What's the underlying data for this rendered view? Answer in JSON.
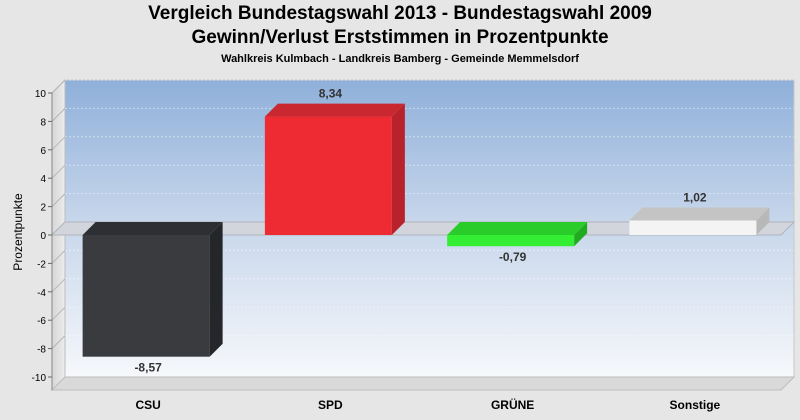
{
  "chart_data": {
    "type": "bar",
    "title": "Vergleich Bundestagswahl 2013 - Bundestagswahl 2009",
    "subtitle": "Gewinn/Verlust Erststimmen in Prozentpunkte",
    "subtitle2": "Wahlkreis Kulmbach - Landkreis Bamberg - Gemeinde Memmelsdorf",
    "ylabel": "Prozentpunkte",
    "xlabel": "",
    "ylim": [
      -10,
      10
    ],
    "yticks": [
      10,
      8,
      6,
      4,
      2,
      0,
      -2,
      -4,
      -6,
      -8,
      -10
    ],
    "categories": [
      "CSU",
      "SPD",
      "GRÜNE",
      "Sonstige"
    ],
    "values": [
      -8.57,
      8.34,
      -0.79,
      1.02
    ],
    "value_labels": [
      "-8,57",
      "8,34",
      "-0,79",
      "1,02"
    ],
    "colors": [
      "#3a3b3f",
      "#ee2a32",
      "#33ee33",
      "#f4f4f4"
    ],
    "side_colors": [
      "#25262a",
      "#b8222a",
      "#22aa22",
      "#b8b8b8"
    ],
    "top_colors": [
      "#2e2f33",
      "#c92830",
      "#2acc2a",
      "#c4c4c4"
    ],
    "grid": true,
    "legend": "none"
  }
}
